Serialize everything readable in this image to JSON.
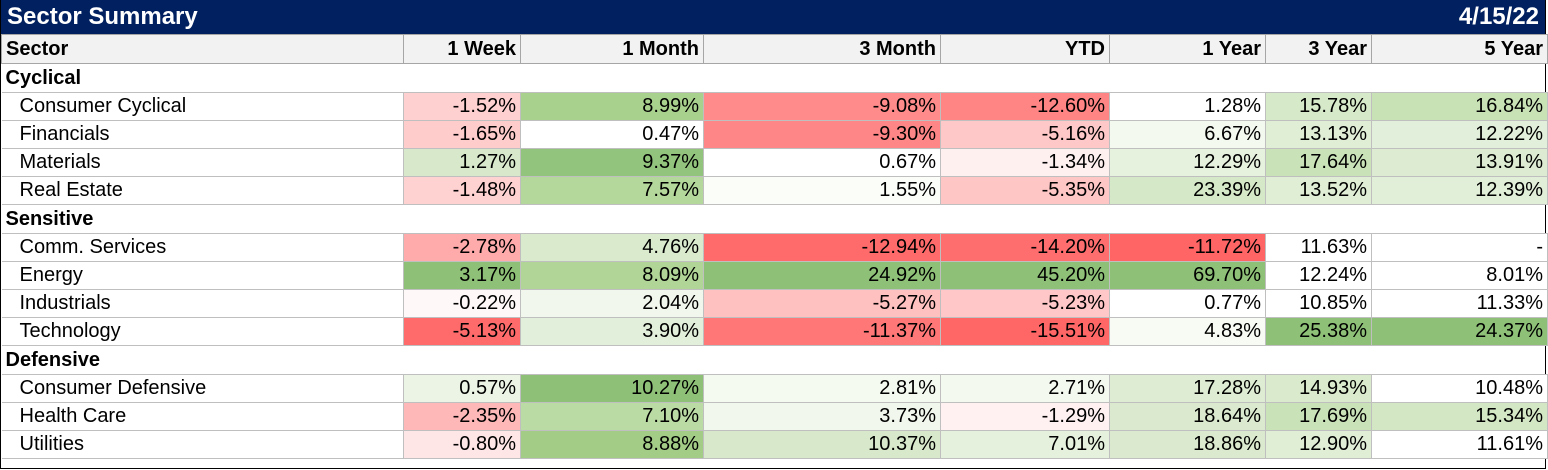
{
  "title": "Sector Summary",
  "date": "4/15/22",
  "headers": [
    "Sector",
    "1 Week",
    "1 Month",
    "3 Month",
    "YTD",
    "1 Year",
    "3 Year",
    "5 Year"
  ],
  "groups": [
    {
      "name": "Cyclical",
      "rows": [
        {
          "sector": "Consumer Cyclical",
          "values": [
            "-1.52%",
            "8.99%",
            "-9.08%",
            "-12.60%",
            "1.28%",
            "15.78%",
            "16.84%"
          ],
          "colors": [
            "#ffd0d0",
            "#a9d18e",
            "#ff8b8b",
            "#ff8585",
            "#ffffff",
            "#d6e9c9",
            "#c8e2b6"
          ]
        },
        {
          "sector": "Financials",
          "values": [
            "-1.65%",
            "0.47%",
            "-9.30%",
            "-5.16%",
            "6.67%",
            "13.13%",
            "12.22%"
          ],
          "colors": [
            "#ffcccc",
            "#ffffff",
            "#ff8686",
            "#ffc8c8",
            "#f4f9f0",
            "#e0eed6",
            "#e2efda"
          ]
        },
        {
          "sector": "Materials",
          "values": [
            "1.27%",
            "9.37%",
            "0.67%",
            "-1.34%",
            "12.29%",
            "17.64%",
            "13.91%"
          ],
          "colors": [
            "#d7e8cb",
            "#93c47d",
            "#ffffff",
            "#fff0f0",
            "#e6f1de",
            "#c9e2b8",
            "#dcebd1"
          ]
        },
        {
          "sector": "Real Estate",
          "values": [
            "-1.48%",
            "7.57%",
            "1.55%",
            "-5.35%",
            "23.39%",
            "13.52%",
            "12.39%"
          ],
          "colors": [
            "#ffd2d2",
            "#b4d79b",
            "#fbfdf9",
            "#ffc6c6",
            "#d5e8c7",
            "#dfeed5",
            "#e1efd8"
          ]
        }
      ]
    },
    {
      "name": "Sensitive",
      "rows": [
        {
          "sector": "Comm. Services",
          "values": [
            "-2.78%",
            "4.76%",
            "-12.94%",
            "-14.20%",
            "-11.72%",
            "11.63%",
            "-"
          ],
          "colors": [
            "#ffabab",
            "#d9eacd",
            "#ff6a6a",
            "#ff6e6e",
            "#ff6565",
            "#ffffff",
            "#ffffff"
          ]
        },
        {
          "sector": "Energy",
          "values": [
            "3.17%",
            "8.09%",
            "24.92%",
            "45.20%",
            "69.70%",
            "12.24%",
            "8.01%"
          ],
          "colors": [
            "#8ec177",
            "#b0d596",
            "#8ec177",
            "#8ec177",
            "#8ec177",
            "#ffffff",
            "#ffffff"
          ]
        },
        {
          "sector": "Industrials",
          "values": [
            "-0.22%",
            "2.04%",
            "-5.27%",
            "-5.23%",
            "0.77%",
            "10.85%",
            "11.33%"
          ],
          "colors": [
            "#fff8f8",
            "#f1f7ec",
            "#ffc0c0",
            "#ffc7c7",
            "#ffffff",
            "#ffffff",
            "#ffffff"
          ]
        },
        {
          "sector": "Technology",
          "values": [
            "-5.13%",
            "3.90%",
            "-11.37%",
            "-15.51%",
            "4.83%",
            "25.38%",
            "24.37%"
          ],
          "colors": [
            "#ff6b6b",
            "#e2efda",
            "#ff7777",
            "#ff6666",
            "#f7fbf4",
            "#8ec177",
            "#8ec177"
          ]
        }
      ]
    },
    {
      "name": "Defensive",
      "rows": [
        {
          "sector": "Consumer Defensive",
          "values": [
            "0.57%",
            "10.27%",
            "2.81%",
            "2.71%",
            "17.28%",
            "14.93%",
            "10.48%"
          ],
          "colors": [
            "#ecf5e5",
            "#8ec177",
            "#f5faf1",
            "#f4f9f0",
            "#ddecd2",
            "#d9ebcc",
            "#ffffff"
          ]
        },
        {
          "sector": "Health Care",
          "values": [
            "-2.35%",
            "7.10%",
            "3.73%",
            "-1.29%",
            "18.64%",
            "17.69%",
            "15.34%"
          ],
          "colors": [
            "#ffb8b8",
            "#bbdba4",
            "#f1f7ec",
            "#fff1f1",
            "#dbeace",
            "#c9e2b8",
            "#d3e7c4"
          ]
        },
        {
          "sector": "Utilities",
          "values": [
            "-0.80%",
            "8.88%",
            "10.37%",
            "7.01%",
            "18.86%",
            "12.90%",
            "11.61%"
          ],
          "colors": [
            "#ffe6e6",
            "#a3cd87",
            "#d7e9ca",
            "#e5f0dd",
            "#dbeace",
            "#e0eed6",
            "#ffffff"
          ]
        }
      ]
    }
  ]
}
